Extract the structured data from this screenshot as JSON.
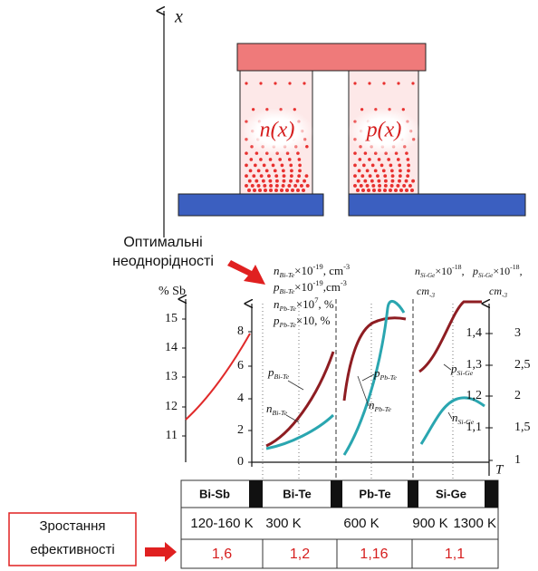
{
  "schematic": {
    "axis_label": "x",
    "n_label": "n(x)",
    "p_label": "p(x)"
  },
  "annotation": [
    "Оптимальні",
    "неоднорідності"
  ],
  "chart": {
    "sb_axis": {
      "label": "% Sb",
      "ticks": [
        "15",
        "14",
        "13",
        "12",
        "11"
      ]
    },
    "main_axis": {
      "ticks": [
        "8",
        "6",
        "4",
        "2",
        "0"
      ]
    },
    "legend_left": [
      [
        "n",
        "Bi-Te",
        "×10",
        "-19",
        ", cm",
        "-3"
      ],
      [
        "p",
        "Bi-Te",
        "×10",
        "-19",
        ",cm",
        "-3"
      ],
      [
        "n",
        "Pb-Te",
        "×10",
        "7",
        ", %"
      ],
      [
        "p",
        "Pb-Te",
        "×10, %"
      ]
    ],
    "legend_right": [
      [
        "n",
        "Si-Ge",
        "×10",
        "-18",
        ","
      ],
      [
        "p",
        "Si-Ge",
        "×10",
        "-18",
        ","
      ]
    ],
    "unit_right": [
      "cm",
      "-3"
    ],
    "inner_right_axis": {
      "ticks": [
        "1,4",
        "1,3",
        "1,2",
        "1,1"
      ]
    },
    "outer_right_axis": {
      "ticks": [
        "3",
        "2,5",
        "2",
        "1,5",
        "1"
      ]
    },
    "t_label": "T",
    "curve_labels": [
      [
        "p",
        "Bi-Te"
      ],
      [
        "n",
        "Bi-Te"
      ],
      [
        "p",
        "Pb-Te"
      ],
      [
        "n",
        "Pb-Te"
      ],
      [
        "p",
        "Si-Ge"
      ],
      [
        "n",
        "Si-Ge"
      ]
    ]
  },
  "table": {
    "materials": [
      "Bi-Sb",
      "Bi-Te",
      "Pb-Te",
      "Si-Ge"
    ],
    "temperatures": [
      "120-160 K",
      "300 K",
      "600 K",
      "900 K",
      "1300 K"
    ],
    "efficiency": [
      "1,6",
      "1,2",
      "1,16",
      "1,1"
    ]
  },
  "efficiency_label": [
    "Зростання",
    "ефективності"
  ]
}
